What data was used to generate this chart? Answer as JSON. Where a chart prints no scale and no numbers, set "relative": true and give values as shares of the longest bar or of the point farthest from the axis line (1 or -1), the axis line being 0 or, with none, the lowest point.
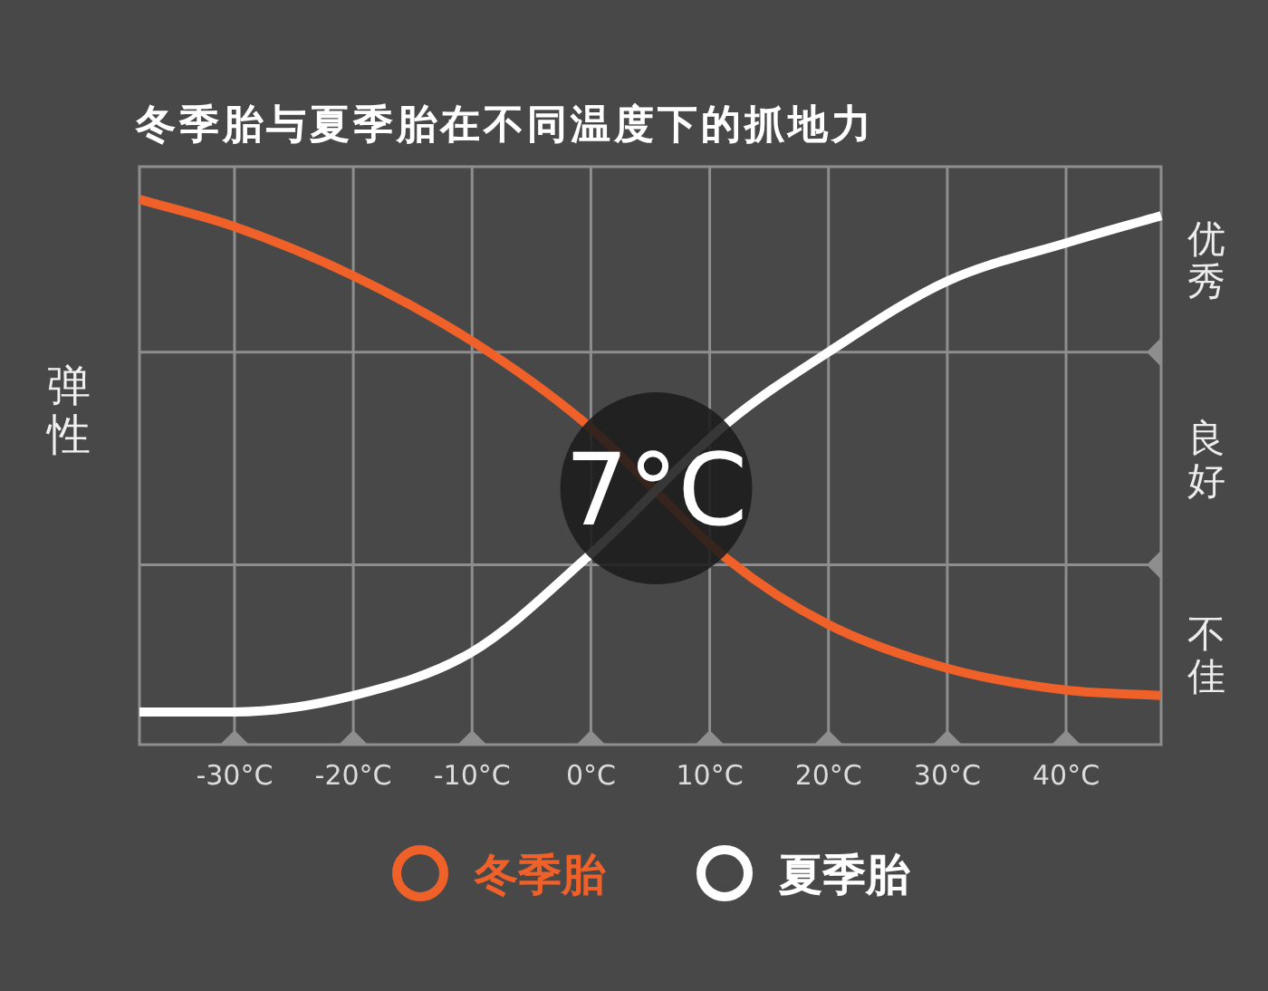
{
  "chart_data": {
    "type": "line",
    "title": "冬季胎与夏季胎在不同温度下的抓地力",
    "ylabel": "弹性",
    "relative": true,
    "x": [
      -38,
      -30,
      -20,
      -10,
      -0.5,
      11.5,
      20,
      30,
      40,
      48
    ],
    "xlim": [
      -38,
      48
    ],
    "xticks": [
      {
        "value": -30,
        "label": "-30°C"
      },
      {
        "value": -20,
        "label": "-20°C"
      },
      {
        "value": -10,
        "label": "-10°C"
      },
      {
        "value": 0,
        "label": "0°C"
      },
      {
        "value": 10,
        "label": "10°C"
      },
      {
        "value": 20,
        "label": "20°C"
      },
      {
        "value": 30,
        "label": "30°C"
      },
      {
        "value": 40,
        "label": "40°C"
      }
    ],
    "series": [
      {
        "name": "冬季胎",
        "color": "#f0612a",
        "values": [
          1,
          0.95,
          0.86,
          0.74,
          0.59,
          0.34,
          0.22,
          0.14,
          0.1,
          0.09
        ]
      },
      {
        "name": "夏季胎",
        "color": "#ffffff",
        "values": [
          0.06,
          0.06,
          0.09,
          0.17,
          0.34,
          0.59,
          0.72,
          0.85,
          0.92,
          0.97
        ]
      }
    ],
    "ref_lines": [
      {
        "axis": "y",
        "value": 0.33
      },
      {
        "axis": "y",
        "value": 0.72
      }
    ],
    "annotations": [
      {
        "text": "7°C",
        "x": 5.5,
        "y": 0.47
      },
      "优秀",
      "良好",
      "不佳"
    ],
    "grid": "x",
    "legend": "bottom"
  }
}
